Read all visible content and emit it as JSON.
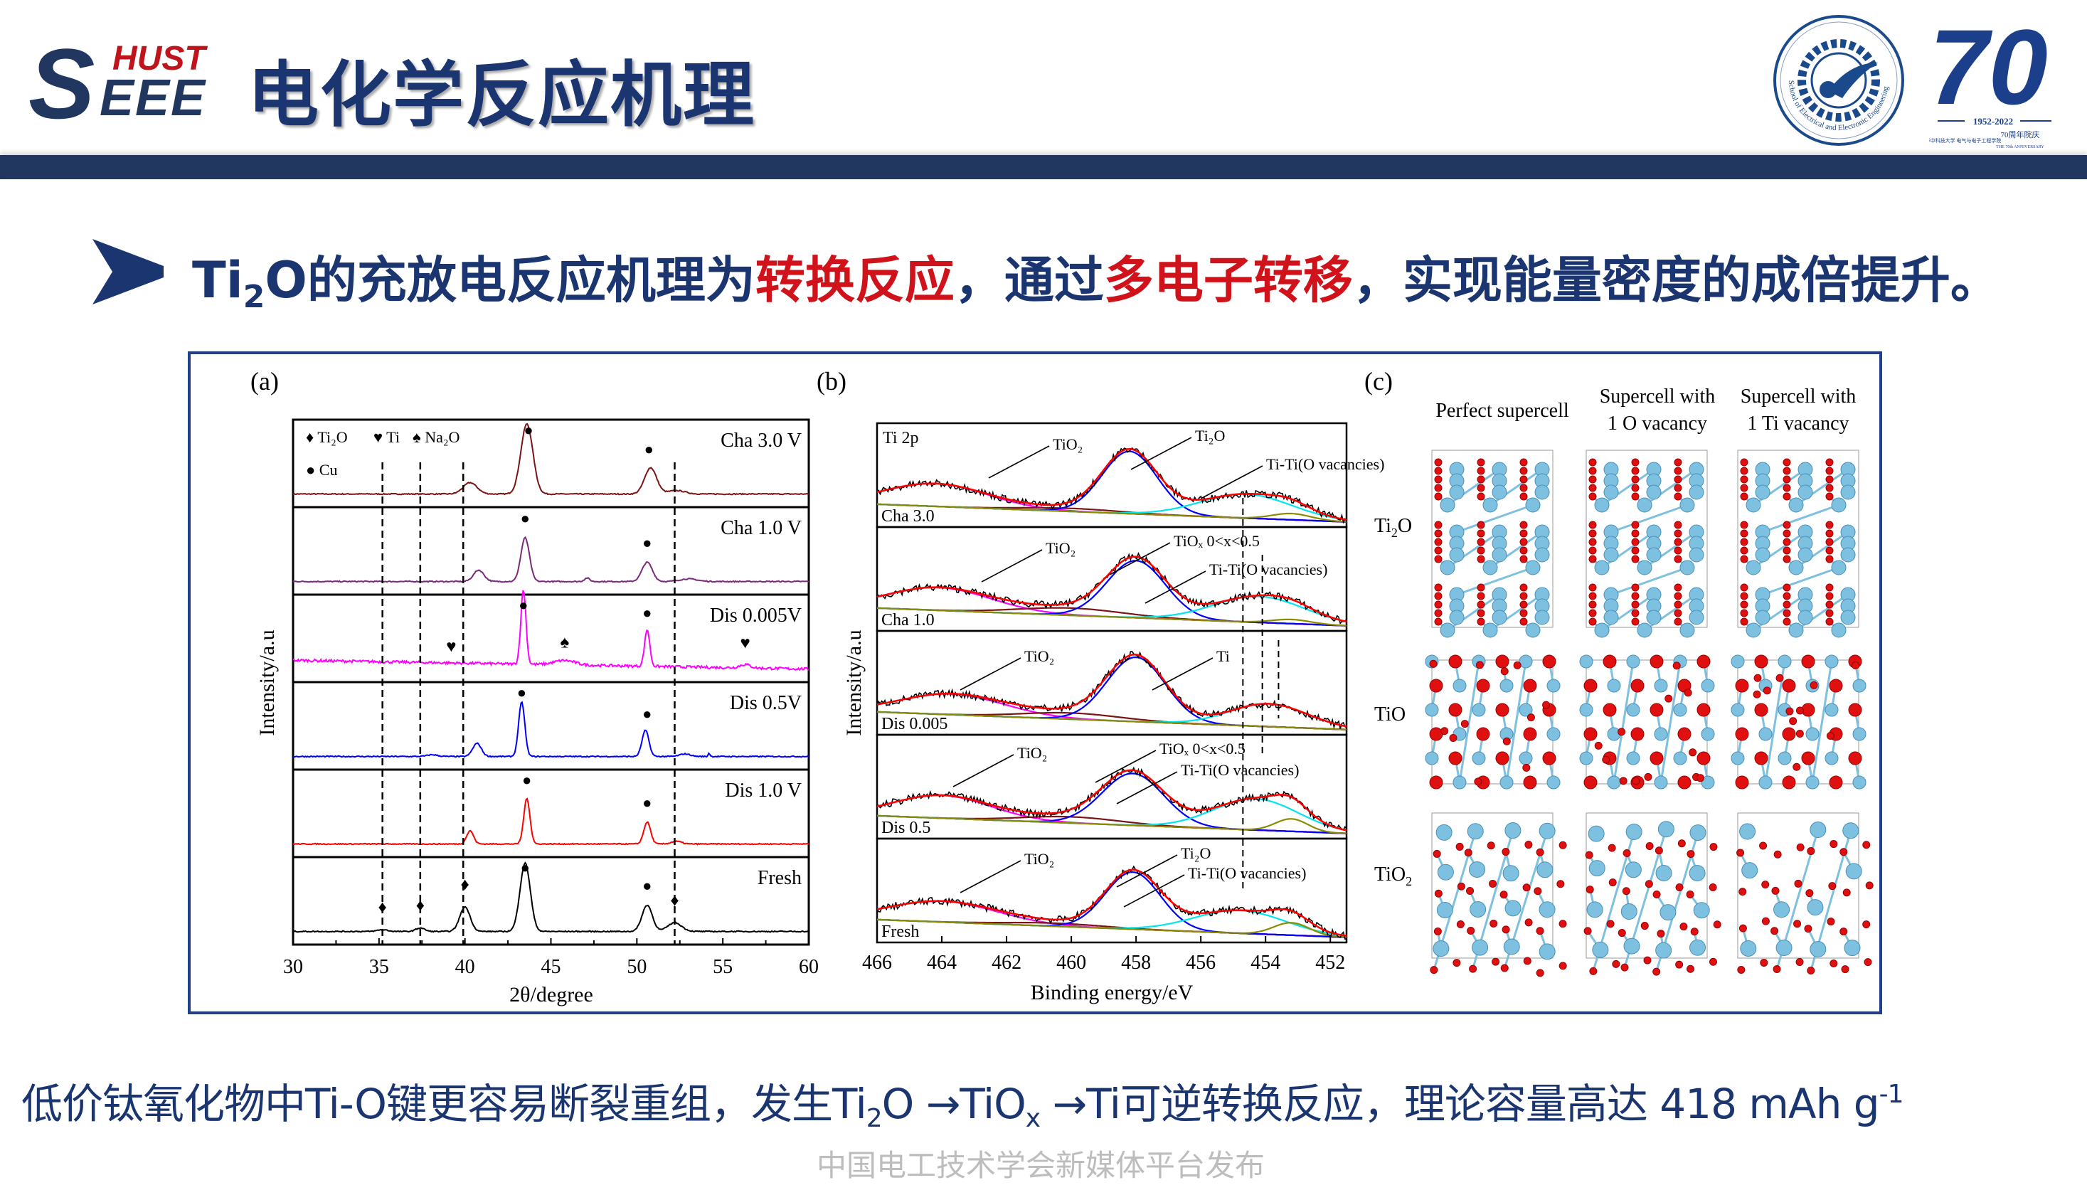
{
  "header": {
    "logo": {
      "s": "S",
      "hust": "HUST",
      "eee": "EEE"
    },
    "title": "电化学反应机理",
    "seal_text": "School of Electrical and Electronic Engineering",
    "anniversary": {
      "number": "70",
      "years": "1952-2022",
      "cn": "70周年院庆",
      "school_cn": "华中科技大学 电气与电子工程学院",
      "en": "THE 70th ANNIVERSARY"
    },
    "colors": {
      "brand_navy": "#1a3570",
      "bar": "#22375f",
      "accent_red": "#d0121b"
    }
  },
  "headline": {
    "icon": "chevron-right-icon",
    "parts": [
      "Ti",
      "2",
      "O的充放电反应机理为",
      "转换反应",
      "，通过",
      "多电子转移",
      "，实现能量密度的成倍提升。"
    ]
  },
  "figure": {
    "panel_a": {
      "label": "(a)",
      "chart_data": {
        "type": "line",
        "xlabel": "2θ/degree",
        "ylabel": "Intensity/a.u",
        "xlim": [
          30,
          60
        ],
        "xticks": [
          "30",
          "35",
          "40",
          "45",
          "50",
          "55",
          "60"
        ],
        "legend": [
          {
            "symbol": "♦",
            "text": "Ti₂O"
          },
          {
            "symbol": "♥",
            "text": "Ti"
          },
          {
            "symbol": "♠",
            "text": "Na₂O"
          },
          {
            "symbol": "●",
            "text": "Cu"
          }
        ],
        "reference_lines": [
          35.2,
          37.4,
          39.9,
          52.2
        ],
        "series": [
          {
            "name": "Cha 3.0 V",
            "color": "#7b1414",
            "peaks": [
              [
                40.3,
                0.13,
                0.4
              ],
              [
                43.6,
                0.8,
                0.35
              ],
              [
                50.8,
                0.3,
                0.35
              ],
              [
                52.3,
                0.04,
                0.5
              ]
            ],
            "markers": [
              [
                "●",
                43.7
              ],
              [
                "●",
                50.7
              ]
            ]
          },
          {
            "name": "Cha 1.0 V",
            "color": "#7a2a7a",
            "peaks": [
              [
                40.8,
                0.13,
                0.3
              ],
              [
                43.5,
                0.5,
                0.25
              ],
              [
                47.1,
                0.04,
                0.15
              ],
              [
                50.6,
                0.22,
                0.3
              ],
              [
                53.0,
                0.03,
                0.5
              ]
            ],
            "markers": [
              [
                "●",
                43.5
              ],
              [
                "●",
                50.6
              ]
            ]
          },
          {
            "name": "Dis 0.005V",
            "color": "#ff00ff",
            "peaks": [
              [
                43.4,
                0.85,
                0.15
              ],
              [
                45.8,
                0.05,
                0.6
              ],
              [
                50.6,
                0.42,
                0.15
              ],
              [
                56.3,
                0.04,
                0.3
              ]
            ],
            "markers": [
              [
                "●",
                43.4
              ],
              [
                "●",
                50.6
              ],
              [
                "♥",
                39.2
              ],
              [
                "♠",
                45.8
              ],
              [
                "♥",
                56.3
              ]
            ]
          },
          {
            "name": "Dis 0.5V",
            "color": "#0000ff",
            "peaks": [
              [
                38.1,
                0.02,
                0.3
              ],
              [
                40.7,
                0.15,
                0.25
              ],
              [
                43.3,
                0.62,
                0.18
              ],
              [
                50.5,
                0.3,
                0.2
              ],
              [
                52.8,
                0.03,
                0.3
              ],
              [
                54.2,
                0.04,
                0.05
              ]
            ],
            "markers": [
              [
                "●",
                43.3
              ],
              [
                "●",
                50.6
              ]
            ]
          },
          {
            "name": "Dis 1.0 V",
            "color": "#ff0000",
            "peaks": [
              [
                40.3,
                0.15,
                0.2
              ],
              [
                43.6,
                0.52,
                0.18
              ],
              [
                50.6,
                0.25,
                0.2
              ],
              [
                52.3,
                0.03,
                0.3
              ]
            ],
            "markers": [
              [
                "●",
                43.6
              ],
              [
                "●",
                50.6
              ]
            ]
          },
          {
            "name": "Fresh",
            "color": "#000000",
            "peaks": [
              [
                35.2,
                0.02,
                0.3
              ],
              [
                37.4,
                0.04,
                0.25
              ],
              [
                40.0,
                0.28,
                0.3
              ],
              [
                43.5,
                0.78,
                0.3
              ],
              [
                50.6,
                0.3,
                0.3
              ],
              [
                52.2,
                0.1,
                0.4
              ]
            ],
            "markers": [
              [
                "●",
                43.5
              ],
              [
                "●",
                50.6
              ],
              [
                "♦",
                35.2
              ],
              [
                "♦",
                37.4
              ],
              [
                "♦",
                40.0
              ],
              [
                "♦",
                52.2
              ]
            ]
          }
        ]
      }
    },
    "panel_b": {
      "label": "(b)",
      "chart_data": {
        "type": "line",
        "xlabel": "Binding energy/eV",
        "ylabel": "Intensity/a.u",
        "xlim": [
          466,
          451.5
        ],
        "xticks": [
          "466",
          "464",
          "462",
          "460",
          "458",
          "456",
          "454",
          "452"
        ],
        "reference_lines": [
          454.7,
          454.1,
          453.6
        ],
        "component_colors": {
          "data": "#000000",
          "envelope": "#ff0000",
          "TiO2_2p1/2": "#ff00ff",
          "TiO2_2p3/2": "#0000ff",
          "satellite": "#7b1414",
          "TiOx": "#00e5ee",
          "Ti": "#8b8b00",
          "background": "#000080"
        },
        "series": [
          {
            "name": "Cha 3.0",
            "extra_label": "Ti 2p",
            "components": {
              "magenta": [
                464.2,
                0.22,
                1.6
              ],
              "darkred": [
                460,
                0.03,
                1.5
              ],
              "blue": [
                458.2,
                0.6,
                0.85
              ],
              "cyan": [
                454.6,
                0.23,
                1.4
              ],
              "olive": [
                453.2,
                0.06,
                0.6
              ]
            },
            "annotations": [
              "TiO₂",
              "Ti₂O",
              "Ti-Ti(O vacancies)"
            ]
          },
          {
            "name": "Cha 1.0",
            "components": {
              "magenta": [
                464.1,
                0.22,
                1.6
              ],
              "darkred": [
                460,
                0.07,
                1.6
              ],
              "blue": [
                458.0,
                0.55,
                0.9
              ],
              "cyan": [
                454.2,
                0.25,
                1.4
              ],
              "olive": [
                453.2,
                0.04,
                0.6
              ]
            },
            "annotations": [
              "TiO₂",
              "TiOₓ 0<x<0.5",
              "Ti-Ti(O vacancies)"
            ]
          },
          {
            "name": "Dis 0.005",
            "components": {
              "magenta": [
                463.7,
                0.2,
                1.6
              ],
              "darkred": [
                460,
                0.06,
                1.5
              ],
              "blue": [
                458.0,
                0.62,
                0.9
              ],
              "cyan": [
                453.9,
                0.22,
                1.2
              ],
              "olive": [
                453.2,
                0.0,
                0.6
              ]
            },
            "annotations": [
              "TiO₂",
              "Ti"
            ]
          },
          {
            "name": "Dis 0.5",
            "components": {
              "magenta": [
                464.0,
                0.22,
                1.5
              ],
              "darkred": [
                460,
                0.06,
                1.5
              ],
              "blue": [
                458.1,
                0.5,
                0.95
              ],
              "cyan": [
                454.3,
                0.3,
                1.3
              ],
              "olive": [
                453.2,
                0.12,
                0.5
              ]
            },
            "annotations": [
              "TiO₂",
              "TiOₓ 0<x<0.5",
              "Ti-Ti(O vacancies)"
            ]
          },
          {
            "name": "Fresh",
            "components": {
              "magenta": [
                464.0,
                0.2,
                1.7
              ],
              "darkred": [
                460.5,
                0.03,
                1.5
              ],
              "blue": [
                458.1,
                0.55,
                0.85
              ],
              "cyan": [
                454.8,
                0.22,
                1.4
              ],
              "olive": [
                453.2,
                0.12,
                0.55
              ]
            },
            "annotations": [
              "TiO₂",
              "Ti₂O",
              "Ti-Ti(O vacancies)"
            ]
          }
        ]
      }
    },
    "panel_c": {
      "label": "(c)",
      "columns": [
        [
          "Perfect supercell"
        ],
        [
          "Supercell with",
          "1 O vacancy"
        ],
        [
          "Supercell with",
          "1 Ti vacancy"
        ]
      ],
      "rows": [
        [
          "Ti",
          "2",
          "O"
        ],
        [
          "TiO",
          "",
          ""
        ],
        [
          "TiO",
          "2",
          ""
        ]
      ],
      "atom_colors": {
        "Ti": "#7ec0e0",
        "O": "#e01010"
      }
    }
  },
  "footer": {
    "parts": [
      "低价钛氧化物中Ti-O键更容易断裂重组，发生Ti",
      "2",
      "O →TiO",
      "x",
      " →Ti可逆转换反应，理论容量高达 418 mAh g",
      "-1"
    ],
    "watermark": "中国电工技术学会新媒体平台发布"
  }
}
